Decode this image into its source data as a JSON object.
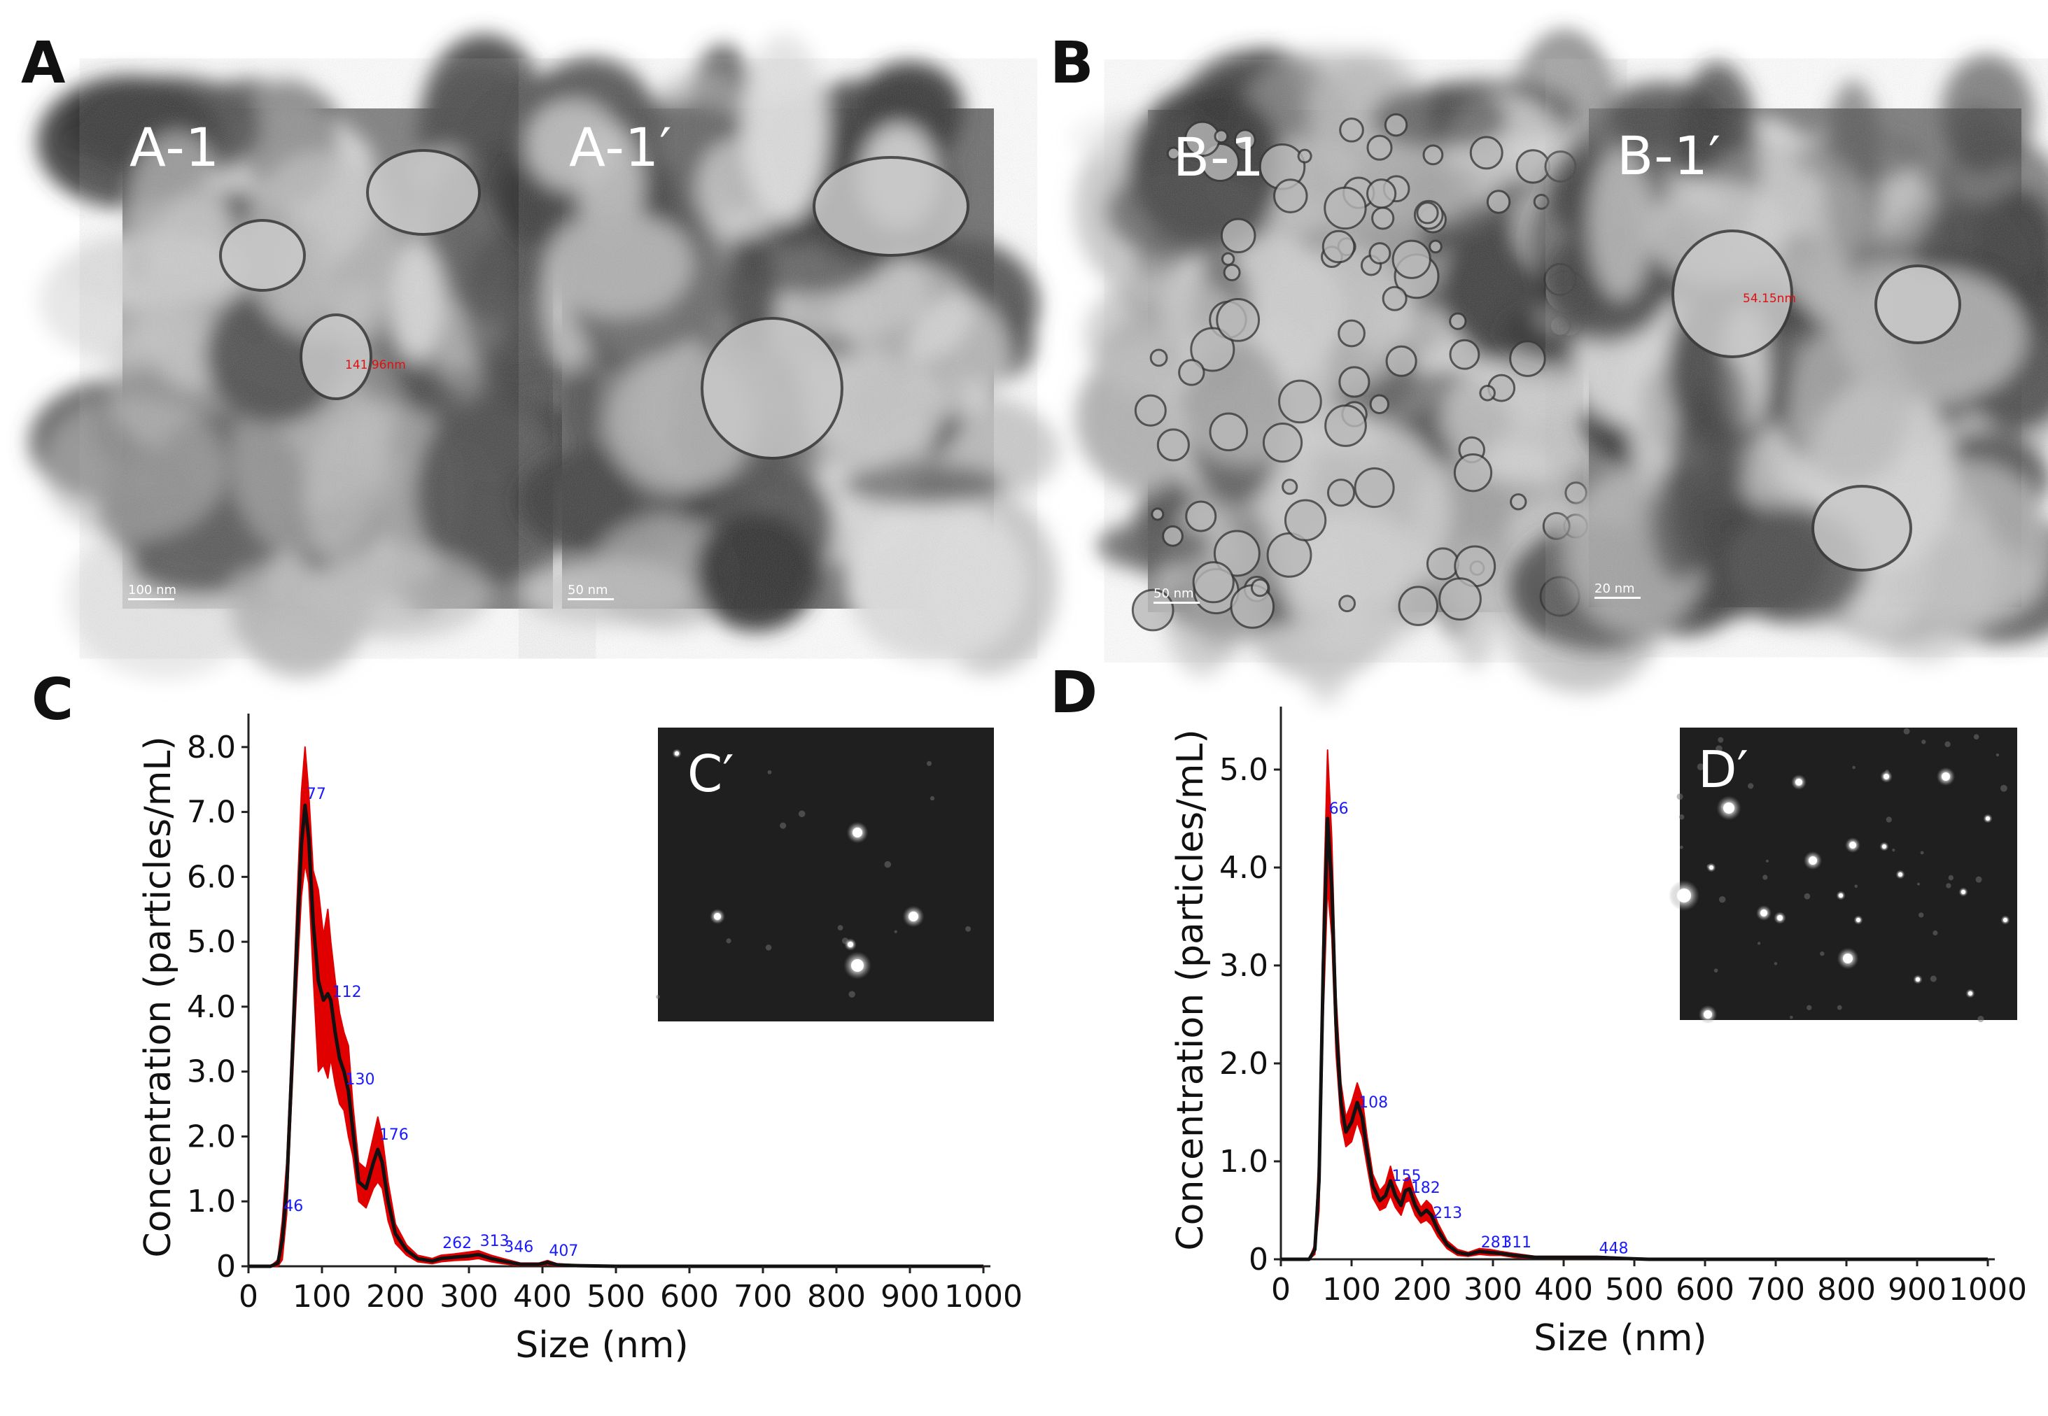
{
  "panels": {
    "A": {
      "letter": "A",
      "images": [
        {
          "label": "A-1",
          "scale": "100 nm",
          "measure": "141.96nm"
        },
        {
          "label": "A-1′",
          "scale": "50 nm"
        }
      ]
    },
    "B": {
      "letter": "B",
      "images": [
        {
          "label": "B-1",
          "scale": "50 nm"
        },
        {
          "label": "B-1′",
          "scale": "20 nm",
          "measure": "54.15nm"
        }
      ]
    },
    "C": {
      "letter": "C",
      "inset_label": "C′"
    },
    "D": {
      "letter": "D",
      "inset_label": "D′"
    }
  },
  "colors": {
    "curve": "#111111",
    "error_band": "#e00000",
    "peak_label": "#1a1aff",
    "axis": "#222222"
  },
  "chart_data": [
    {
      "type": "line",
      "panel": "C",
      "xlabel": "Size (nm)",
      "ylabel": "Concentration (particles/mL)",
      "xlim": [
        0,
        1000
      ],
      "ylim": [
        0,
        8.3
      ],
      "x_ticks": [
        "0",
        "100",
        "200",
        "300",
        "400",
        "500",
        "600",
        "700",
        "800",
        "900",
        "1000"
      ],
      "y_ticks": [
        "0",
        "1.0",
        "2.0",
        "3.0",
        "4.0",
        "5.0",
        "6.0",
        "7.0",
        "8.0"
      ],
      "grid": false,
      "series": [
        {
          "x": [
            0,
            30,
            40,
            46,
            52,
            58,
            66,
            72,
            77,
            82,
            88,
            95,
            102,
            108,
            112,
            118,
            124,
            130,
            136,
            142,
            150,
            160,
            170,
            176,
            182,
            190,
            200,
            215,
            230,
            250,
            262,
            280,
            300,
            313,
            330,
            346,
            370,
            395,
            407,
            420,
            450,
            500,
            600,
            700,
            800,
            900,
            1000
          ],
          "y": [
            0,
            0,
            0.05,
            0.4,
            1.2,
            2.8,
            5.0,
            6.5,
            7.1,
            6.6,
            5.3,
            4.4,
            4.1,
            4.2,
            4.1,
            3.6,
            3.2,
            3.0,
            2.7,
            2.1,
            1.3,
            1.2,
            1.6,
            1.8,
            1.6,
            1.0,
            0.5,
            0.25,
            0.12,
            0.08,
            0.12,
            0.14,
            0.16,
            0.18,
            0.12,
            0.08,
            0.03,
            0.03,
            0.06,
            0.02,
            0.01,
            0,
            0,
            0,
            0,
            0,
            0
          ],
          "err": [
            0,
            0,
            0.05,
            0.3,
            0.4,
            0.4,
            0.6,
            0.8,
            0.9,
            0.7,
            0.8,
            1.4,
            1.0,
            1.3,
            0.9,
            0.8,
            0.7,
            0.6,
            0.7,
            0.4,
            0.3,
            0.3,
            0.4,
            0.5,
            0.4,
            0.3,
            0.15,
            0.08,
            0.05,
            0.04,
            0.05,
            0.05,
            0.06,
            0.06,
            0.05,
            0.04,
            0.02,
            0.02,
            0.03,
            0.02,
            0.01,
            0,
            0,
            0,
            0,
            0,
            0
          ]
        }
      ],
      "peak_labels": [
        {
          "x": 46,
          "y": 0.85,
          "text": "46"
        },
        {
          "x": 77,
          "y": 7.2,
          "text": "77"
        },
        {
          "x": 112,
          "y": 4.15,
          "text": "112"
        },
        {
          "x": 130,
          "y": 2.8,
          "text": "130"
        },
        {
          "x": 176,
          "y": 1.95,
          "text": "176"
        },
        {
          "x": 262,
          "y": 0.28,
          "text": "262"
        },
        {
          "x": 313,
          "y": 0.31,
          "text": "313"
        },
        {
          "x": 346,
          "y": 0.22,
          "text": "346"
        },
        {
          "x": 407,
          "y": 0.16,
          "text": "407"
        }
      ]
    },
    {
      "type": "line",
      "panel": "D",
      "xlabel": "Size (nm)",
      "ylabel": "Concentration (particles/mL)",
      "xlim": [
        0,
        1000
      ],
      "ylim": [
        0,
        5.5
      ],
      "x_ticks": [
        "0",
        "100",
        "200",
        "300",
        "400",
        "500",
        "600",
        "700",
        "800",
        "900",
        "1000"
      ],
      "y_ticks": [
        "0",
        "1.0",
        "2.0",
        "3.0",
        "4.0",
        "5.0"
      ],
      "grid": false,
      "series": [
        {
          "x": [
            0,
            40,
            48,
            54,
            60,
            66,
            72,
            78,
            85,
            92,
            100,
            108,
            115,
            122,
            130,
            140,
            148,
            155,
            162,
            170,
            176,
            182,
            190,
            198,
            206,
            213,
            222,
            235,
            250,
            265,
            281,
            296,
            311,
            330,
            360,
            400,
            448,
            480,
            520,
            600,
            700,
            800,
            900,
            1000
          ],
          "y": [
            0,
            0,
            0.1,
            0.8,
            3.0,
            4.5,
            3.8,
            2.4,
            1.6,
            1.3,
            1.4,
            1.6,
            1.45,
            1.1,
            0.75,
            0.6,
            0.65,
            0.8,
            0.65,
            0.55,
            0.7,
            0.72,
            0.55,
            0.45,
            0.5,
            0.45,
            0.3,
            0.15,
            0.07,
            0.05,
            0.08,
            0.07,
            0.06,
            0.04,
            0.02,
            0.02,
            0.02,
            0.01,
            0,
            0,
            0,
            0,
            0,
            0
          ],
          "err": [
            0,
            0,
            0.05,
            0.3,
            0.5,
            0.7,
            0.5,
            0.3,
            0.2,
            0.15,
            0.2,
            0.2,
            0.2,
            0.15,
            0.12,
            0.1,
            0.12,
            0.15,
            0.12,
            0.1,
            0.12,
            0.12,
            0.1,
            0.08,
            0.1,
            0.1,
            0.07,
            0.04,
            0.03,
            0.02,
            0.03,
            0.03,
            0.02,
            0.02,
            0.01,
            0.01,
            0.01,
            0.01,
            0,
            0,
            0,
            0,
            0,
            0
          ]
        }
      ],
      "peak_labels": [
        {
          "x": 66,
          "y": 4.55,
          "text": "66"
        },
        {
          "x": 108,
          "y": 1.55,
          "text": "108"
        },
        {
          "x": 155,
          "y": 0.8,
          "text": "155"
        },
        {
          "x": 182,
          "y": 0.68,
          "text": "182"
        },
        {
          "x": 213,
          "y": 0.42,
          "text": "213"
        },
        {
          "x": 281,
          "y": 0.12,
          "text": "281"
        },
        {
          "x": 311,
          "y": 0.12,
          "text": "311"
        },
        {
          "x": 448,
          "y": 0.06,
          "text": "448"
        }
      ]
    }
  ]
}
